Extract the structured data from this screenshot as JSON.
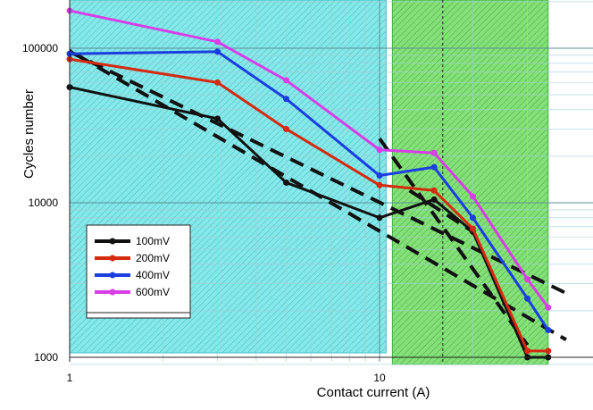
{
  "chart_data": {
    "type": "line",
    "xlabel": "Contact current (A)",
    "ylabel": "Cycles number",
    "x_scale": "log",
    "y_scale": "log",
    "xlim": [
      1,
      35
    ],
    "ylim": [
      900,
      200000
    ],
    "x_tick_labels": [
      {
        "value": 1,
        "label": "1"
      },
      {
        "value": 10,
        "label": "10"
      }
    ],
    "y_tick_labels": [
      {
        "value": 1000,
        "label": "1000"
      },
      {
        "value": 10000,
        "label": "10000"
      },
      {
        "value": 100000,
        "label": "100000"
      }
    ],
    "grid": true,
    "legend_position": "lower-left",
    "regions": [
      {
        "x_from": 1,
        "x_to": 10.5,
        "color": "#7fe3e3",
        "hatch": true
      },
      {
        "x_from": 11,
        "x_to": 35,
        "color": "#7be06a",
        "hatch": true
      }
    ],
    "reference_line_x": 16,
    "series": [
      {
        "name": "100mV",
        "color": "#111111",
        "x": [
          1,
          3,
          5,
          10,
          15,
          20,
          30,
          35
        ],
        "y": [
          56000,
          35000,
          13500,
          8000,
          10500,
          6500,
          1000,
          1000
        ]
      },
      {
        "name": "200mV",
        "color": "#d42a10",
        "x": [
          1,
          3,
          5,
          10,
          15,
          20,
          30,
          35
        ],
        "y": [
          85000,
          60000,
          30000,
          13000,
          12000,
          6800,
          1100,
          1100
        ]
      },
      {
        "name": "400mV",
        "color": "#1a3ee0",
        "x": [
          1,
          3,
          5,
          10,
          15,
          20,
          30,
          35
        ],
        "y": [
          92000,
          95000,
          47000,
          15000,
          17000,
          8000,
          2400,
          1500
        ]
      },
      {
        "name": "600mV",
        "color": "#d73ee6",
        "x": [
          1,
          3,
          5,
          10,
          15,
          20,
          30,
          35
        ],
        "y": [
          175000,
          110000,
          62000,
          22000,
          21000,
          11000,
          3200,
          2100
        ]
      }
    ],
    "trend_lines": [
      {
        "x": [
          0.8,
          40
        ],
        "y": [
          125000,
          1300
        ]
      },
      {
        "x": [
          1,
          40
        ],
        "y": [
          95000,
          2600
        ]
      },
      {
        "x": [
          10,
          30
        ],
        "y": [
          26000,
          1200
        ]
      },
      {
        "x": [
          12.5,
          20
        ],
        "y": [
          12000,
          6500
        ]
      }
    ]
  }
}
